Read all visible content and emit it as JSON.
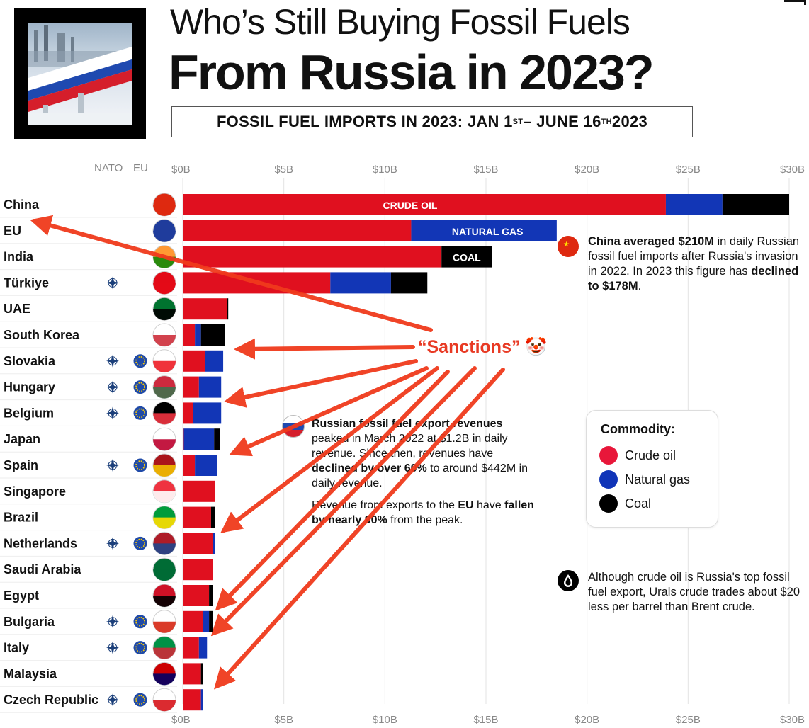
{
  "header": {
    "title_line1": "Who’s Still Buying Fossil Fuels",
    "title_line2": "From Russia in 2023?",
    "subtitle_a": "FOSSIL FUEL IMPORTS IN 2023: JAN 1",
    "subtitle_sup1": "ST",
    "subtitle_b": " – JUNE 16",
    "subtitle_sup2": "TH",
    "subtitle_c": " 2023"
  },
  "column_headers": {
    "nato": "NATO",
    "eu": "EU"
  },
  "annotations": {
    "bar_labels": {
      "crude": "CRUDE OIL",
      "gas": "NATURAL GAS",
      "coal": "COAL"
    },
    "sanctions_label": "“Sanctions” 🤡",
    "china_note_bold1": "China averaged $210M",
    "china_note_text1": " in daily Russian fossil fuel imports after Russia's invasion in 2022. In 2023 this figure has ",
    "china_note_bold2": "declined to $178M",
    "china_note_text2": ".",
    "revenue_note_bold1": "Russian fossil fuel export revenues",
    "revenue_note_text1": " peaked in March 2022 at $1.2B in daily revenue. Since then, revenues have ",
    "revenue_note_bold2": "declined by over 60%",
    "revenue_note_text2": " to around $442M in daily revenue.",
    "revenue_note2_text1": "Revenue from exports to the ",
    "revenue_note2_bold1": "EU",
    "revenue_note2_text2": " have ",
    "revenue_note2_bold2": "fallen by nearly 90%",
    "revenue_note2_text3": " from the peak.",
    "oil_note": "Although crude oil is Russia's top fossil fuel export, Urals crude trades about $20 less per barrel than Brent crude."
  },
  "legend": {
    "title": "Commodity:",
    "items": [
      {
        "label": "Crude oil",
        "color": "#e8173a"
      },
      {
        "label": "Natural gas",
        "color": "#1034b8"
      },
      {
        "label": "Coal",
        "color": "#000000"
      }
    ]
  },
  "colors": {
    "crude": "#e0101f",
    "gas": "#1236b6",
    "coal": "#000000",
    "arrow": "#f03a1c",
    "grid": "#e3e3e3"
  },
  "chart_data": {
    "type": "bar",
    "orientation": "horizontal",
    "stacked": true,
    "xlim": [
      0,
      30
    ],
    "x_ticks": [
      "$0B",
      "$5B",
      "$10B",
      "$15B",
      "$20B",
      "$25B",
      "$30B"
    ],
    "categories": [
      "China",
      "EU",
      "India",
      "Türkiye",
      "UAE",
      "South Korea",
      "Slovakia",
      "Hungary",
      "Belgium",
      "Japan",
      "Spain",
      "Singapore",
      "Brazil",
      "Netherlands",
      "Saudi Arabia",
      "Egypt",
      "Bulgaria",
      "Italy",
      "Malaysia",
      "Czech Republic"
    ],
    "nato": [
      false,
      false,
      false,
      true,
      false,
      false,
      true,
      true,
      true,
      false,
      true,
      false,
      false,
      true,
      false,
      false,
      true,
      true,
      false,
      true
    ],
    "eu": [
      false,
      false,
      false,
      false,
      false,
      false,
      true,
      true,
      true,
      false,
      true,
      false,
      false,
      true,
      false,
      false,
      true,
      true,
      false,
      true
    ],
    "flag_icons": [
      "flag-china",
      "flag-eu",
      "flag-india",
      "flag-turkiye",
      "flag-uae",
      "flag-south-korea",
      "flag-slovakia",
      "flag-hungary",
      "flag-belgium",
      "flag-japan",
      "flag-spain",
      "flag-singapore",
      "flag-brazil",
      "flag-netherlands",
      "flag-saudi-arabia",
      "flag-egypt",
      "flag-bulgaria",
      "flag-italy",
      "flag-malaysia",
      "flag-czech-republic"
    ],
    "series": [
      {
        "name": "Crude oil",
        "values": [
          23.9,
          11.3,
          12.8,
          7.3,
          2.2,
          0.6,
          1.1,
          0.8,
          0.5,
          0.05,
          0.6,
          1.6,
          1.4,
          1.5,
          1.5,
          1.3,
          1.0,
          0.8,
          0.9,
          0.9
        ]
      },
      {
        "name": "Natural gas",
        "values": [
          2.8,
          7.2,
          0.0,
          3.0,
          0.0,
          0.3,
          0.9,
          1.1,
          1.4,
          1.5,
          1.1,
          0.0,
          0.0,
          0.1,
          0.0,
          0.0,
          0.3,
          0.4,
          0.0,
          0.1
        ]
      },
      {
        "name": "Coal",
        "values": [
          3.3,
          0.0,
          2.5,
          1.8,
          0.05,
          1.2,
          0.0,
          0.0,
          0.0,
          0.3,
          0.0,
          0.0,
          0.2,
          0.0,
          0.0,
          0.2,
          0.2,
          0.0,
          0.1,
          0.0
        ]
      }
    ]
  }
}
